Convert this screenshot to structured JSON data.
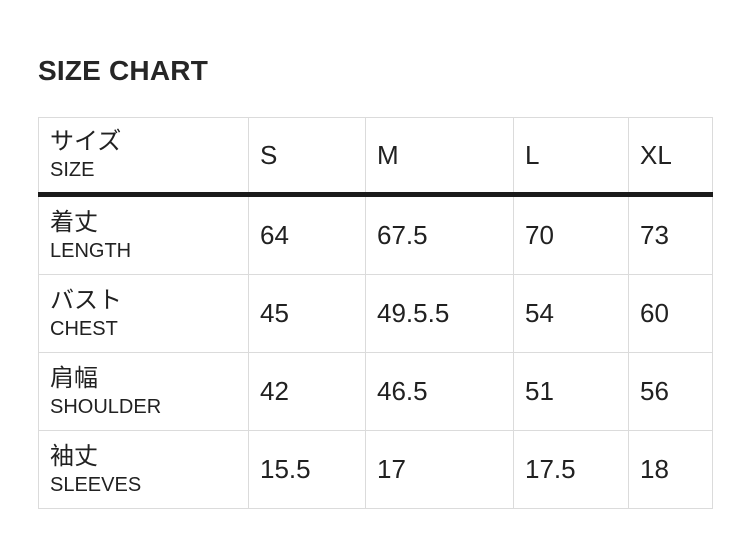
{
  "page": {
    "title": "SIZE CHART"
  },
  "colors": {
    "background": "#ffffff",
    "text": "#212121",
    "grid_border": "#dbdbdb",
    "header_rule": "#1b1b1b"
  },
  "table": {
    "header": {
      "label_ja": "サイズ",
      "label_en": "SIZE",
      "columns": [
        "S",
        "M",
        "L",
        "XL"
      ]
    },
    "rows": [
      {
        "label_ja": "着丈",
        "label_en": "LENGTH",
        "values": [
          "64",
          "67.5",
          "70",
          "73"
        ]
      },
      {
        "label_ja": "バスト",
        "label_en": "CHEST",
        "values": [
          "45",
          "49.5.5",
          "54",
          "60"
        ]
      },
      {
        "label_ja": "肩幅",
        "label_en": "SHOULDER",
        "values": [
          "42",
          "46.5",
          "51",
          "56"
        ]
      },
      {
        "label_ja": "袖丈",
        "label_en": "SLEEVES",
        "values": [
          "15.5",
          "17",
          "17.5",
          "18"
        ]
      }
    ]
  }
}
